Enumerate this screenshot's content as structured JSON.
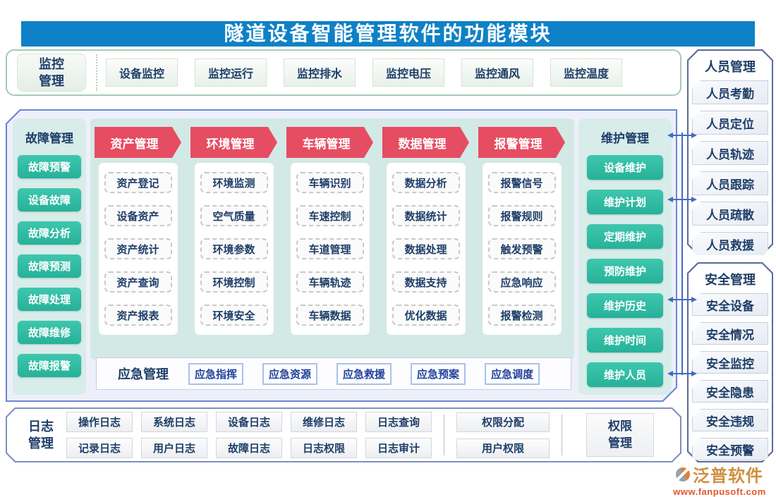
{
  "title": "隧道设备智能管理软件的功能模块",
  "monitor": {
    "label": "监控管理",
    "items": [
      "设备监控",
      "监控运行",
      "监控排水",
      "监控电压",
      "监控通风",
      "监控温度"
    ]
  },
  "fault": {
    "label": "故障管理",
    "items": [
      "故障预警",
      "设备故障",
      "故障分析",
      "故障预测",
      "故障处理",
      "故障维修",
      "故障报警"
    ]
  },
  "columns": [
    {
      "header": "资产管理",
      "items": [
        "资产登记",
        "设备资产",
        "资产统计",
        "资产查询",
        "资产报表"
      ]
    },
    {
      "header": "环境管理",
      "items": [
        "环境监测",
        "空气质量",
        "环境参数",
        "环境控制",
        "环境安全"
      ]
    },
    {
      "header": "车辆管理",
      "items": [
        "车辆识别",
        "车速控制",
        "车道管理",
        "车辆轨迹",
        "车辆数据"
      ]
    },
    {
      "header": "数据管理",
      "items": [
        "数据分析",
        "数据统计",
        "数据处理",
        "数据支持",
        "优化数据"
      ]
    },
    {
      "header": "报警管理",
      "items": [
        "报警信号",
        "报警规则",
        "触发预警",
        "应急响应",
        "报警检测"
      ]
    }
  ],
  "maintenance": {
    "label": "维护管理",
    "items": [
      "设备维护",
      "维护计划",
      "定期维护",
      "预防维护",
      "维护历史",
      "维护时间",
      "维护人员"
    ]
  },
  "emergency": {
    "label": "应急管理",
    "items": [
      "应急指挥",
      "应急资源",
      "应急救援",
      "应急预案",
      "应急调度"
    ]
  },
  "personnel": {
    "label": "人员管理",
    "items": [
      "人员考勤",
      "人员定位",
      "人员轨迹",
      "人员跟踪",
      "人员疏散",
      "人员救援"
    ]
  },
  "safety": {
    "label": "安全管理",
    "items": [
      "安全设备",
      "安全情况",
      "安全监控",
      "安全隐患",
      "安全违规",
      "安全预警"
    ]
  },
  "log": {
    "label": "日志管理",
    "row1": [
      "操作日志",
      "系统日志",
      "设备日志",
      "维修日志",
      "日志查询"
    ],
    "row2": [
      "记录日志",
      "用户日志",
      "故障日志",
      "日志权限",
      "日志审计"
    ]
  },
  "permission": {
    "buttons": [
      "权限分配",
      "用户权限"
    ],
    "label": "权限管理"
  },
  "logo": {
    "name": "泛普软件",
    "url": "www.fanpusoft.com"
  },
  "colors": {
    "title_bar_blue": "#0e81c6",
    "module_arrow_red": "#e64d62",
    "module_teal": "#2db9a1",
    "text_navy": "#1e3e68",
    "connector_blue": "#3f6cc7",
    "logo_orange": "#cf9040",
    "logo_url_red": "#e2572b"
  }
}
